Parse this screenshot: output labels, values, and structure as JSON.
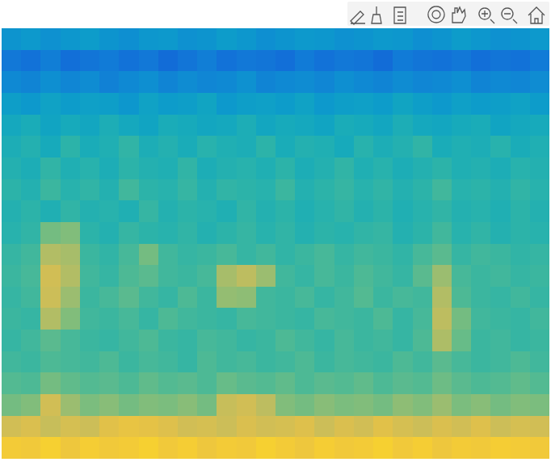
{
  "chart_data": {
    "type": "heatmap",
    "color": "parula",
    "tick_labels": false,
    "color_range": [
      0,
      10
    ],
    "cells": [
      [
        3.2,
        3.4,
        3.1,
        3.3,
        3.5,
        3.2,
        3.0,
        3.3,
        3.4,
        3.1,
        3.2,
        3.5,
        3.3,
        3.0,
        3.2,
        3.4,
        3.3,
        3.1,
        3.2,
        3.4,
        3.3,
        3.0,
        3.2,
        3.5,
        3.3,
        3.1,
        3.2,
        3.4
      ],
      [
        2.2,
        2.0,
        2.4,
        1.9,
        2.1,
        2.3,
        2.0,
        2.2,
        1.8,
        2.1,
        2.4,
        2.0,
        2.2,
        2.1,
        1.9,
        2.3,
        2.0,
        2.2,
        2.1,
        1.8,
        2.3,
        2.1,
        2.0,
        2.2,
        1.9,
        2.1,
        2.0,
        2.3
      ],
      [
        2.8,
        2.6,
        3.0,
        2.7,
        2.9,
        2.5,
        2.8,
        3.0,
        2.6,
        2.9,
        2.7,
        2.8,
        3.1,
        2.6,
        2.8,
        2.9,
        2.7,
        3.0,
        2.8,
        2.6,
        2.9,
        2.7,
        2.8,
        3.0,
        2.6,
        2.8,
        2.7,
        2.9
      ],
      [
        3.6,
        3.4,
        3.8,
        3.5,
        3.7,
        3.6,
        3.3,
        3.8,
        3.5,
        3.6,
        3.9,
        3.4,
        3.6,
        3.7,
        3.5,
        3.8,
        3.4,
        3.6,
        3.7,
        3.5,
        3.9,
        3.6,
        3.4,
        3.7,
        3.5,
        3.6,
        3.8,
        3.5
      ],
      [
        4.1,
        4.3,
        3.9,
        4.2,
        4.0,
        4.4,
        4.1,
        3.9,
        4.3,
        4.2,
        4.0,
        4.1,
        4.4,
        4.0,
        4.2,
        4.1,
        3.9,
        4.3,
        4.2,
        4.0,
        4.4,
        4.1,
        4.0,
        4.2,
        4.3,
        3.9,
        4.1,
        4.2
      ],
      [
        4.4,
        4.6,
        4.2,
        4.8,
        4.3,
        4.5,
        4.9,
        4.4,
        4.6,
        4.3,
        4.7,
        4.5,
        4.4,
        4.8,
        4.3,
        4.6,
        4.5,
        4.2,
        4.7,
        4.4,
        4.6,
        4.9,
        4.3,
        4.5,
        4.4,
        4.7,
        4.3,
        4.5
      ],
      [
        4.6,
        4.4,
        4.9,
        4.5,
        4.7,
        4.4,
        4.8,
        4.6,
        4.5,
        4.9,
        4.4,
        4.6,
        4.7,
        4.5,
        4.8,
        4.4,
        4.6,
        4.9,
        4.5,
        4.7,
        4.4,
        4.6,
        4.8,
        4.5,
        4.6,
        4.4,
        4.7,
        4.6
      ],
      [
        4.8,
        4.6,
        5.1,
        4.7,
        4.9,
        4.6,
        5.2,
        4.8,
        4.7,
        5.0,
        4.6,
        4.9,
        4.8,
        4.7,
        5.1,
        4.6,
        4.8,
        5.0,
        4.7,
        4.9,
        4.6,
        4.8,
        5.2,
        4.7,
        4.8,
        4.6,
        4.9,
        4.7
      ],
      [
        4.6,
        4.8,
        4.5,
        4.9,
        4.6,
        4.7,
        4.5,
        5.0,
        4.6,
        4.8,
        4.7,
        4.5,
        4.9,
        4.6,
        4.8,
        4.5,
        4.7,
        4.9,
        4.6,
        4.8,
        4.5,
        4.7,
        4.9,
        4.6,
        4.7,
        4.5,
        4.8,
        4.6
      ],
      [
        4.7,
        4.9,
        6.0,
        6.2,
        4.8,
        4.6,
        5.0,
        4.8,
        4.7,
        4.9,
        4.6,
        4.8,
        5.0,
        4.7,
        4.9,
        4.6,
        4.8,
        4.7,
        4.9,
        5.0,
        4.6,
        4.8,
        5.2,
        4.7,
        4.9,
        4.6,
        4.8,
        4.7
      ],
      [
        5.0,
        5.2,
        7.0,
        6.8,
        5.1,
        4.9,
        5.3,
        6.0,
        5.2,
        5.0,
        5.1,
        5.3,
        5.0,
        5.2,
        4.9,
        5.1,
        5.3,
        5.0,
        5.2,
        5.1,
        4.9,
        5.3,
        5.6,
        5.0,
        5.2,
        5.1,
        4.9,
        5.0
      ],
      [
        5.1,
        5.3,
        7.6,
        7.0,
        5.2,
        5.0,
        5.4,
        5.6,
        5.2,
        5.1,
        5.3,
        6.8,
        7.2,
        6.6,
        5.2,
        5.0,
        5.3,
        5.1,
        5.4,
        5.2,
        5.0,
        5.6,
        6.6,
        5.3,
        5.1,
        5.2,
        5.0,
        5.1
      ],
      [
        5.0,
        5.2,
        7.5,
        6.6,
        5.1,
        5.3,
        5.6,
        5.2,
        5.0,
        5.4,
        5.1,
        6.5,
        6.4,
        5.2,
        5.1,
        5.3,
        5.0,
        5.2,
        5.5,
        5.1,
        5.3,
        5.2,
        7.0,
        5.4,
        5.1,
        5.0,
        5.2,
        5.0
      ],
      [
        5.1,
        5.0,
        7.0,
        6.2,
        5.2,
        5.1,
        5.3,
        5.0,
        5.4,
        5.2,
        5.1,
        5.0,
        5.3,
        5.2,
        5.1,
        5.0,
        5.3,
        5.2,
        5.1,
        5.4,
        5.0,
        5.3,
        7.2,
        6.0,
        5.2,
        5.1,
        5.0,
        5.2
      ],
      [
        5.0,
        5.2,
        5.6,
        5.3,
        5.1,
        5.0,
        5.2,
        5.4,
        5.1,
        5.0,
        5.3,
        5.2,
        5.0,
        5.1,
        5.4,
        5.2,
        5.0,
        5.3,
        5.1,
        5.2,
        5.0,
        5.4,
        6.9,
        5.8,
        5.1,
        5.2,
        5.0,
        5.1
      ],
      [
        5.2,
        5.1,
        5.4,
        5.3,
        5.2,
        5.4,
        5.1,
        5.3,
        5.2,
        5.0,
        5.4,
        5.2,
        5.3,
        5.1,
        5.2,
        5.4,
        5.1,
        5.3,
        5.2,
        5.1,
        5.4,
        5.2,
        5.6,
        5.3,
        5.1,
        5.2,
        5.4,
        5.2
      ],
      [
        5.5,
        5.4,
        6.0,
        5.7,
        5.5,
        5.6,
        5.4,
        5.7,
        5.5,
        5.6,
        5.4,
        5.8,
        5.6,
        5.5,
        5.7,
        5.4,
        5.6,
        5.5,
        5.7,
        5.4,
        5.6,
        5.5,
        5.9,
        5.6,
        5.4,
        5.5,
        5.7,
        5.5
      ],
      [
        6.0,
        6.2,
        7.6,
        6.6,
        6.1,
        6.3,
        6.0,
        6.2,
        6.1,
        6.3,
        6.0,
        7.4,
        7.6,
        7.2,
        6.2,
        6.0,
        6.3,
        6.1,
        6.2,
        6.0,
        6.4,
        6.2,
        6.6,
        6.1,
        6.3,
        6.0,
        6.2,
        6.1
      ],
      [
        7.6,
        7.8,
        7.4,
        7.7,
        7.5,
        8.0,
        8.2,
        8.1,
        7.9,
        7.6,
        7.7,
        7.5,
        7.8,
        7.6,
        7.7,
        7.9,
        7.5,
        7.8,
        7.6,
        8.0,
        7.7,
        7.5,
        7.8,
        7.6,
        7.9,
        7.5,
        7.7,
        7.6
      ],
      [
        8.6,
        8.5,
        8.8,
        8.4,
        8.7,
        8.5,
        8.6,
        8.8,
        8.5,
        8.7,
        8.4,
        8.6,
        8.5,
        8.8,
        8.6,
        8.4,
        8.7,
        8.5,
        8.6,
        8.8,
        8.5,
        8.7,
        8.4,
        8.6,
        8.5,
        8.7,
        8.6,
        8.5
      ]
    ]
  }
}
